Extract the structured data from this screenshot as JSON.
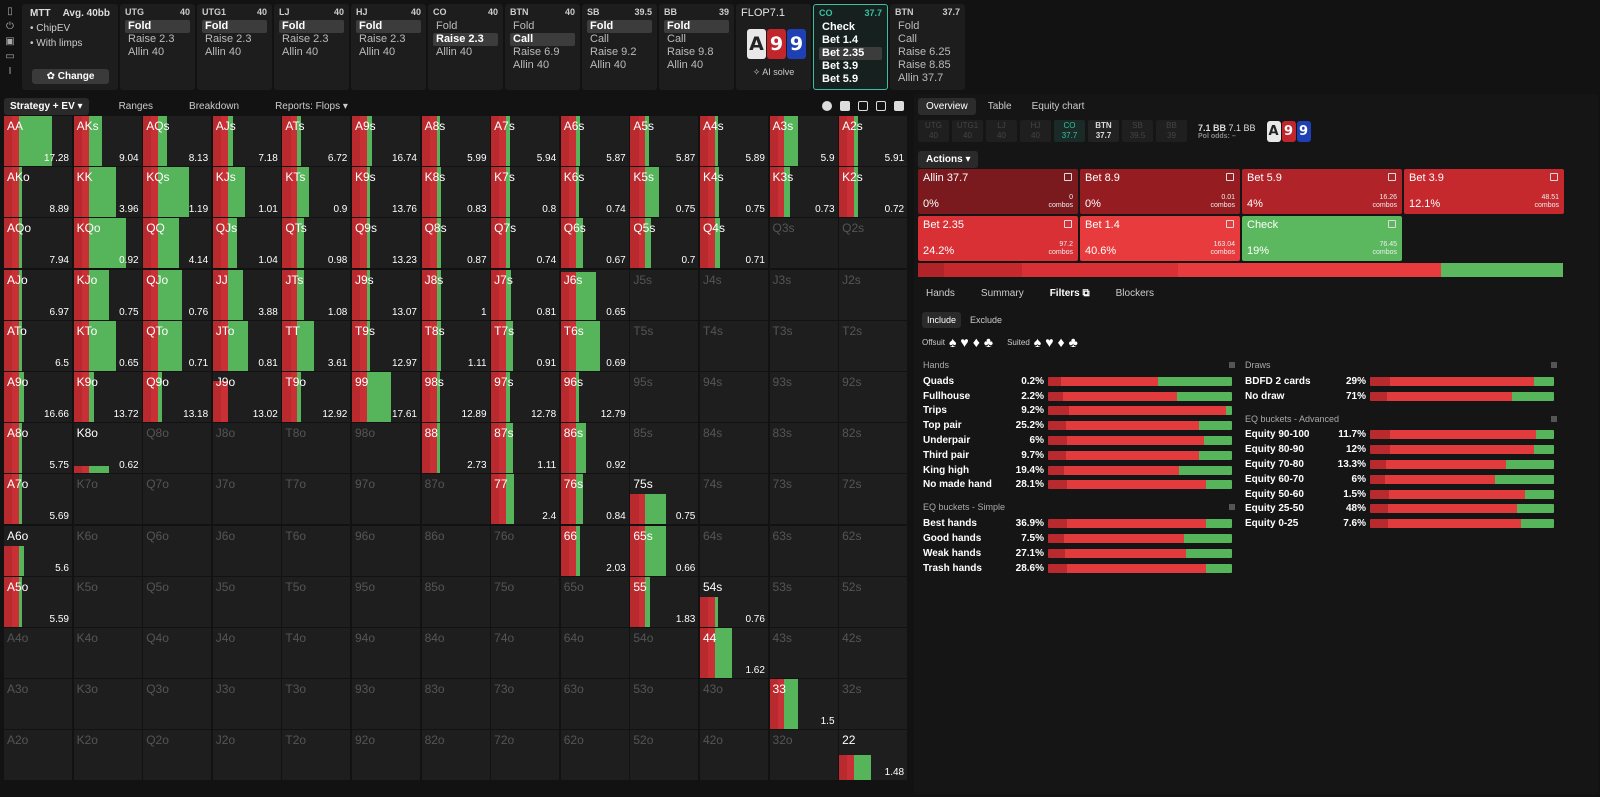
{
  "settings": {
    "game": "MTT",
    "avg": "Avg. 40bb",
    "items": [
      "ChipEV",
      "With limps"
    ],
    "change_label": "Change"
  },
  "seats": [
    {
      "pos": "UTG",
      "stack": "40",
      "actions": [
        "Fold",
        "Raise 2.3",
        "Allin 40"
      ],
      "selected": 0
    },
    {
      "pos": "UTG1",
      "stack": "40",
      "actions": [
        "Fold",
        "Raise 2.3",
        "Allin 40"
      ],
      "selected": 0
    },
    {
      "pos": "LJ",
      "stack": "40",
      "actions": [
        "Fold",
        "Raise 2.3",
        "Allin 40"
      ],
      "selected": 0
    },
    {
      "pos": "HJ",
      "stack": "40",
      "actions": [
        "Fold",
        "Raise 2.3",
        "Allin 40"
      ],
      "selected": 0
    },
    {
      "pos": "CO",
      "stack": "40",
      "actions": [
        "Fold",
        "Raise 2.3",
        "Allin 40"
      ],
      "selected": 1
    },
    {
      "pos": "BTN",
      "stack": "40",
      "actions": [
        "Fold",
        "Call",
        "Raise 6.9",
        "Allin 40"
      ],
      "selected": 1
    },
    {
      "pos": "SB",
      "stack": "39.5",
      "actions": [
        "Fold",
        "Call",
        "Raise 9.2",
        "Allin 40"
      ],
      "selected": 0
    },
    {
      "pos": "BB",
      "stack": "39",
      "actions": [
        "Fold",
        "Call",
        "Raise 9.8",
        "Allin 40"
      ],
      "selected": 0
    }
  ],
  "flop": {
    "label": "FLOP",
    "pot": "7.1",
    "cards": [
      {
        "rank": "A",
        "color": "#e8e8e8",
        "text": "#222"
      },
      {
        "rank": "9",
        "color": "#c0262b",
        "text": "#fff"
      },
      {
        "rank": "9",
        "color": "#1f3fb5",
        "text": "#fff"
      }
    ],
    "ai_label": "AI solve"
  },
  "co_seat": {
    "pos": "CO",
    "stack": "37.7",
    "actions": [
      "Check",
      "Bet 1.4",
      "Bet 2.35",
      "Bet 3.9",
      "Bet 5.9"
    ],
    "selected": 2
  },
  "btn_seat": {
    "pos": "BTN",
    "stack": "37.7",
    "actions": [
      "Fold",
      "Call",
      "Raise 6.25",
      "Raise 8.85",
      "Allin 37.7"
    ]
  },
  "toolbar": {
    "tabs": [
      "Strategy + EV",
      "Ranges",
      "Breakdown",
      "Reports: Flops"
    ]
  },
  "right": {
    "tabs": [
      "Overview",
      "Table",
      "Equity chart"
    ],
    "positions": [
      {
        "n": "UTG",
        "s": "40"
      },
      {
        "n": "UTG1",
        "s": "40"
      },
      {
        "n": "LJ",
        "s": "40"
      },
      {
        "n": "HJ",
        "s": "40"
      },
      {
        "n": "CO",
        "s": "37.7"
      },
      {
        "n": "BTN",
        "s": "37.7"
      },
      {
        "n": "SB",
        "s": "39.5"
      },
      {
        "n": "BB",
        "s": "39"
      }
    ],
    "pot1": "7.1 BB",
    "pot2": "7.1 BB",
    "pol_odds": "Pol odds:  –",
    "actions_label": "Actions",
    "actions": [
      {
        "label": "Allin 37.7",
        "pct": "0%",
        "combos": "0",
        "color": "#7a1a1e"
      },
      {
        "label": "Bet 8.9",
        "pct": "0%",
        "combos": "0.01",
        "color": "#951d22"
      },
      {
        "label": "Bet 5.9",
        "pct": "4%",
        "combos": "16.26",
        "color": "#b02328"
      },
      {
        "label": "Bet 3.9",
        "pct": "12.1%",
        "combos": "48.51",
        "color": "#c5292e"
      },
      {
        "label": "Bet 2.35",
        "pct": "24.2%",
        "combos": "97.2",
        "color": "#d83034"
      },
      {
        "label": "Bet 1.4",
        "pct": "40.6%",
        "combos": "163.04",
        "color": "#e83b3e"
      },
      {
        "label": "Check",
        "pct": "19%",
        "combos": "76.45",
        "color": "#5cb85f"
      }
    ],
    "combos_word": "combos",
    "freq": [
      {
        "w": 4,
        "c": "#b02328"
      },
      {
        "w": 12.1,
        "c": "#c5292e"
      },
      {
        "w": 24.2,
        "c": "#d83034"
      },
      {
        "w": 40.6,
        "c": "#e83b3e"
      },
      {
        "w": 19,
        "c": "#5cb85f"
      }
    ],
    "subtabs": [
      "Hands",
      "Summary",
      "Filters",
      "Blockers"
    ],
    "include": [
      "Include",
      "Exclude"
    ],
    "offsuit": "Offsuit",
    "suited": "Suited",
    "suits": [
      "♠",
      "♥",
      "♦",
      "♣"
    ],
    "hands_title": "Hands",
    "hands": [
      {
        "n": "Quads",
        "v": "0.2%",
        "r": 60,
        "g": 40
      },
      {
        "n": "Fullhouse",
        "v": "2.2%",
        "r": 70,
        "g": 30
      },
      {
        "n": "Trips",
        "v": "9.2%",
        "r": 97,
        "g": 3
      },
      {
        "n": "Top pair",
        "v": "25.2%",
        "r": 82,
        "g": 18
      },
      {
        "n": "Underpair",
        "v": "6%",
        "r": 85,
        "g": 15
      },
      {
        "n": "Third pair",
        "v": "9.7%",
        "r": 82,
        "g": 18
      },
      {
        "n": "King high",
        "v": "19.4%",
        "r": 71,
        "g": 29
      },
      {
        "n": "No made hand",
        "v": "28.1%",
        "r": 86,
        "g": 14
      }
    ],
    "eqs_title": "EQ buckets - Simple",
    "eqs": [
      {
        "n": "Best hands",
        "v": "36.9%",
        "r": 86,
        "g": 14
      },
      {
        "n": "Good hands",
        "v": "7.5%",
        "r": 74,
        "g": 26
      },
      {
        "n": "Weak hands",
        "v": "27.1%",
        "r": 75,
        "g": 25
      },
      {
        "n": "Trash hands",
        "v": "28.6%",
        "r": 86,
        "g": 14
      }
    ],
    "draws_title": "Draws",
    "draws": [
      {
        "n": "BDFD 2 cards",
        "v": "29%",
        "r": 89,
        "g": 11
      },
      {
        "n": "No draw",
        "v": "71%",
        "r": 77,
        "g": 23
      }
    ],
    "eqa_title": "EQ buckets - Advanced",
    "eqa": [
      {
        "n": "Equity 90-100",
        "v": "11.7%",
        "r": 90,
        "g": 10
      },
      {
        "n": "Equity 80-90",
        "v": "12%",
        "r": 89,
        "g": 11
      },
      {
        "n": "Equity 70-80",
        "v": "13.3%",
        "r": 74,
        "g": 26
      },
      {
        "n": "Equity 60-70",
        "v": "6%",
        "r": 68,
        "g": 32
      },
      {
        "n": "Equity 50-60",
        "v": "1.5%",
        "r": 84,
        "g": 16
      },
      {
        "n": "Equity 25-50",
        "v": "48%",
        "r": 80,
        "g": 20
      },
      {
        "n": "Equity 0-25",
        "v": "7.6%",
        "r": 82,
        "g": 18
      }
    ]
  },
  "ranks": [
    "A",
    "K",
    "Q",
    "J",
    "T",
    "9",
    "8",
    "7",
    "6",
    "5",
    "4",
    "3",
    "2"
  ],
  "grid": [
    [
      "AA 17.28 1 0.48",
      "AKs 9.04 1 0.2",
      "AQs 8.13 1 0.13",
      "AJs 7.18 1 0.08",
      "ATs 6.72 1 0.05",
      "A9s 16.74 1 0.07",
      "A8s 5.99 1 0.05",
      "A7s 5.94 1 0.05",
      "A6s 5.87 1 0.06",
      "A5s 5.87 1 0.05",
      "A4s 5.89 1 0.04",
      "A3s 5.9 1 0.2",
      "A2s 5.91 1 0.06"
    ],
    [
      "AKo 8.89 1 0.04",
      "KK 3.96 1 0.4",
      "KQs 1.19 1 0.45",
      "KJs 1.01 1 0.25",
      "KTs 0.9 1 0.17",
      "K9s 13.76 1 0.05",
      "K8s 0.83 1 0.06",
      "K7s 0.8 1 0.05",
      "K6s 0.74 1 0.05",
      "K5s 0.75 1 0.2",
      "K4s 0.75 1 0.06",
      "K3s 0.73 1 0.08",
      "K2s 0.72 1 0.06"
    ],
    [
      "AQo 7.94 1 0.05",
      "KQo 0.92 1 0.55",
      "QQ 4.14 1 0.3",
      "QJs 1.04 1 0.13",
      "QTs 0.98 1 0.1",
      "Q9s 13.23 1 0.04",
      "Q8s 0.87 1 0.07",
      "Q7s 0.74 1 0.06",
      "Q6s 0.67 1 0.1",
      "Q5s 0.7 1 0.08",
      "Q4s 0.71 1 0.07",
      "Q3s - 0 0",
      "Q2s - 0 0"
    ],
    [
      "AJo 6.97 1 0.04",
      "KJo 0.75 1 0.3",
      "QJo 0.76 1 0.35",
      "JJ 3.88 1 0.22",
      "JTs 1.08 1 0.1",
      "J9s 13.07 1 0.05",
      "J8s 1 1 0.07",
      "J7s 0.81 1 0.07",
      "J6s 0.65 0.95 0.3",
      "J5s - 0 0",
      "J4s - 0 0",
      "J3s - 0 0",
      "J2s - 0 0"
    ],
    [
      "ATo 6.5 1 0.05",
      "KTo 0.65 1 0.4",
      "QTo 0.71 1 0.35",
      "JTo 0.81 1 0.3",
      "TT 3.61 1 0.25",
      "T9s 12.97 1 0.05",
      "T8s 1.11 1 0.07",
      "T7s 0.91 1 0.1",
      "T6s 0.69 1 0.35",
      "T5s - 0 0",
      "T4s - 0 0",
      "T3s - 0 0",
      "T2s - 0 0"
    ],
    [
      "A9o 16.66 1 0.07",
      "K9o 13.72 1 0.08",
      "Q9o 13.18 1 0.06",
      "J9o 13.02 0.82 0",
      "T9o 12.92 1 0.05",
      "99 17.61 1 0.35",
      "98s 12.89 1 0.05",
      "97s 12.78 1 0.05",
      "96s 12.79 1 0.05",
      "95s - 0 0",
      "94s - 0 0",
      "93s - 0 0",
      "92s - 0 0"
    ],
    [
      "A8o 5.75 1 0.05",
      "K8o 0.62 0.15 0.3",
      "Q8o - 0 0",
      "J8o - 0 0",
      "T8o - 0 0",
      "98o - 0 0",
      "88 2.73 1 0.05",
      "87s 1.11 1 0.1",
      "86s 0.92 1 0.15",
      "85s - 0 0",
      "84s - 0 0",
      "83s - 0 0",
      "82s - 0 0"
    ],
    [
      "A7o 5.69 1 0.05",
      "K7o - 0 0",
      "Q7o - 0 0",
      "J7o - 0 0",
      "T7o - 0 0",
      "97o - 0 0",
      "87o - 0 0",
      "77 2.4 1 0.12",
      "76s 0.84 1 0.1",
      "75s 0.75 0.6 0.3",
      "74s - 0 0",
      "73s - 0 0",
      "72s - 0 0"
    ],
    [
      "A6o 5.6 0.6 0.07",
      "K6o - 0 0",
      "Q6o - 0 0",
      "J6o - 0 0",
      "T6o - 0 0",
      "96o - 0 0",
      "86o - 0 0",
      "76o - 0 0",
      "66 2.03 1 0.07",
      "65s 0.66 1 0.3",
      "64s - 0 0",
      "63s - 0 0",
      "62s - 0 0"
    ],
    [
      "A5o 5.59 1 0.05",
      "K5o - 0 0",
      "Q5o - 0 0",
      "J5o - 0 0",
      "T5o - 0 0",
      "95o - 0 0",
      "85o - 0 0",
      "75o - 0 0",
      "65o - 0 0",
      "55 1.83 1 0.07",
      "54s 0.76 0.6 0.05",
      "53s - 0 0",
      "52s - 0 0"
    ],
    [
      "A4o - 0 0",
      "K4o - 0 0",
      "Q4o - 0 0",
      "J4o - 0 0",
      "T4o - 0 0",
      "94o - 0 0",
      "84o - 0 0",
      "74o - 0 0",
      "64o - 0 0",
      "54o - 0 0",
      "44 1.62 1 0.25",
      "43s - 0 0",
      "42s - 0 0"
    ],
    [
      "A3o - 0 0",
      "K3o - 0 0",
      "Q3o - 0 0",
      "J3o - 0 0",
      "T3o - 0 0",
      "93o - 0 0",
      "83o - 0 0",
      "73o - 0 0",
      "63o - 0 0",
      "53o - 0 0",
      "43o - 0 0",
      "33 1.5 1 0.2",
      "32s - 0 0"
    ],
    [
      "A2o - 0 0",
      "K2o - 0 0",
      "Q2o - 0 0",
      "J2o - 0 0",
      "T2o - 0 0",
      "92o - 0 0",
      "82o - 0 0",
      "72o - 0 0",
      "62o - 0 0",
      "52o - 0 0",
      "42o - 0 0",
      "32o - 0 0",
      "22 1.48 0.5 0.25"
    ]
  ]
}
